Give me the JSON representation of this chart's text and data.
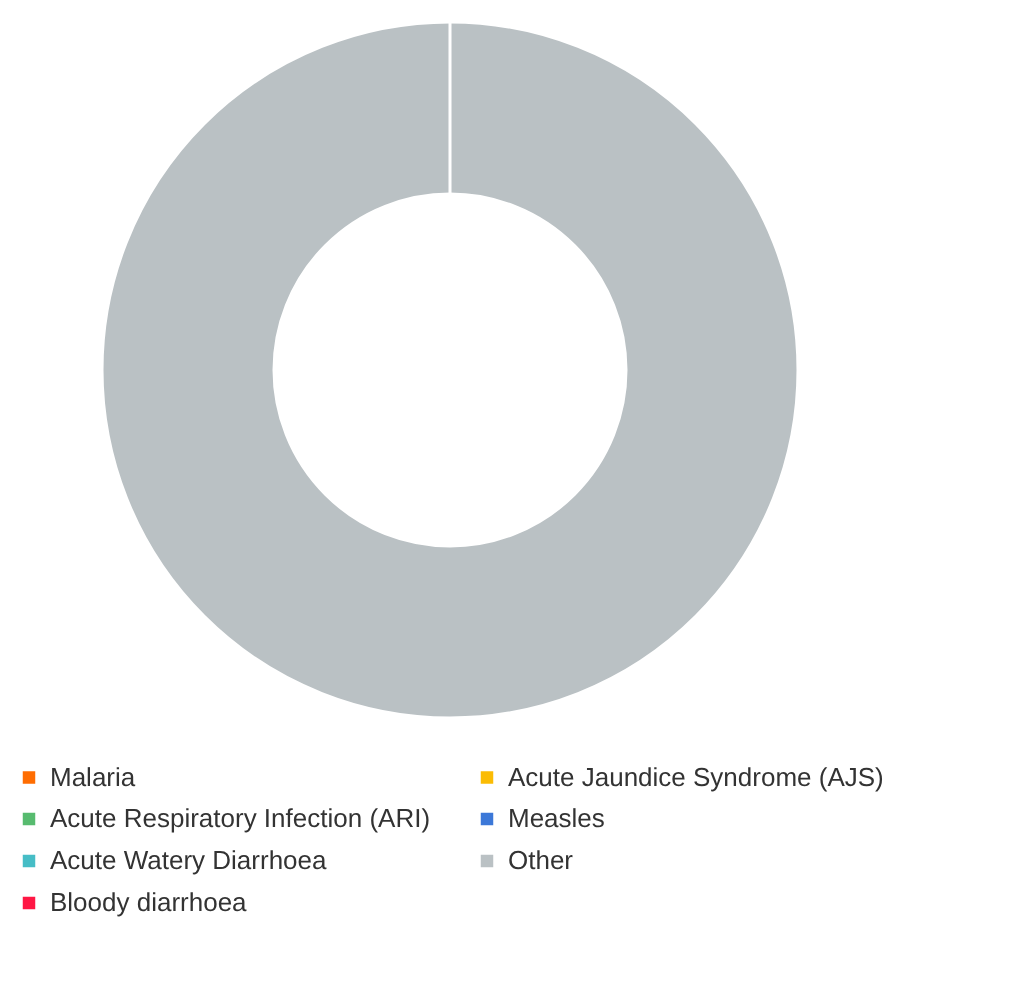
{
  "chart_data": {
    "type": "donut",
    "categories": [
      "Malaria",
      "Acute Jaundice Syndrome (AJS)",
      "Acute Respiratory Infection (ARI)",
      "Measles",
      "Acute Watery Diarrhoea",
      "Other",
      "Bloody diarrhoea"
    ],
    "values": [
      0,
      0,
      0,
      0,
      0,
      100,
      0
    ],
    "colors": [
      "#ff6d01",
      "#fbbc04",
      "#57bb6f",
      "#3c78d8",
      "#46bdc6",
      "#bac1c4",
      "#ff1744"
    ],
    "legend": "bottom"
  }
}
